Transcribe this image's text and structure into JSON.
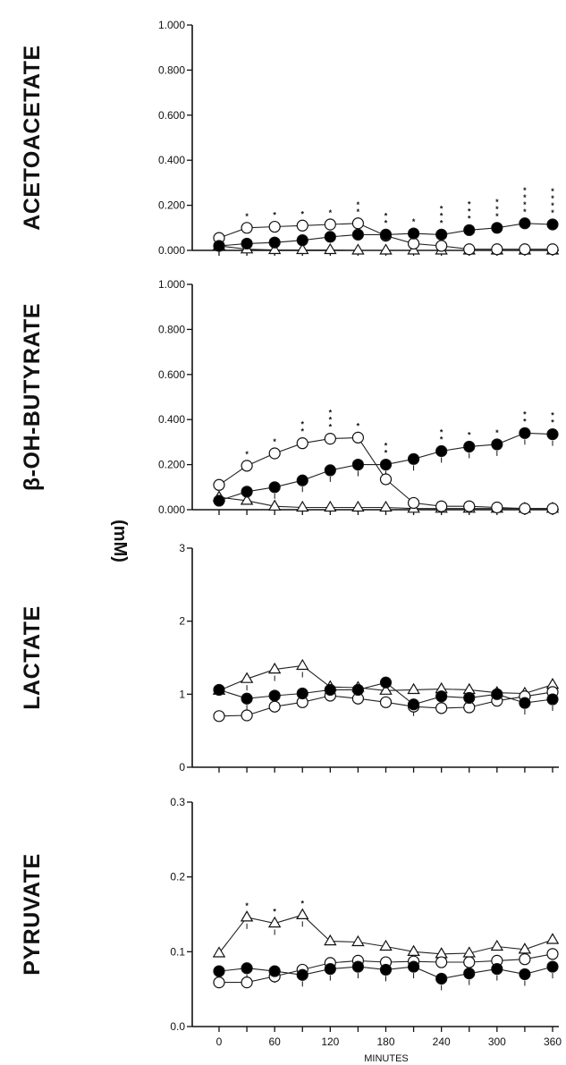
{
  "figure": {
    "unit_label": "(mM)",
    "x_axis_label": "MINUTES"
  },
  "chart_data": [
    {
      "type": "line",
      "title": "ACETOACETATE",
      "ylabel": "ACETOACETATE",
      "xlabel": "MINUTES",
      "ylim": [
        0,
        1.0
      ],
      "xlim": [
        0,
        360
      ],
      "y_ticks": [
        "0.000",
        "0.200",
        "0.400",
        "0.600",
        "0.800",
        "1.000"
      ],
      "x_ticks": [
        "0",
        "60",
        "120",
        "180",
        "240",
        "300",
        "360"
      ],
      "x": [
        0,
        30,
        60,
        90,
        120,
        150,
        180,
        210,
        240,
        270,
        300,
        330,
        360
      ],
      "series": [
        {
          "marker": "filled-circle",
          "values": [
            0.02,
            0.03,
            0.035,
            0.045,
            0.06,
            0.07,
            0.07,
            0.075,
            0.07,
            0.09,
            0.1,
            0.12,
            0.115
          ]
        },
        {
          "marker": "open-circle",
          "values": [
            0.055,
            0.1,
            0.105,
            0.11,
            0.115,
            0.12,
            0.065,
            0.03,
            0.02,
            0.005,
            0.005,
            0.005,
            0.005
          ]
        },
        {
          "marker": "open-triangle",
          "values": [
            0.02,
            0.005,
            0.002,
            0.002,
            0.002,
            0.0,
            0.0,
            0.0,
            0.0,
            0.0,
            0.0,
            0.0,
            0.0
          ]
        }
      ],
      "significance_marks": [
        "",
        "*",
        "*",
        "*",
        "*",
        "**",
        "**",
        "*",
        "***",
        "***",
        "***",
        "****",
        "****"
      ]
    },
    {
      "type": "line",
      "title": "β-OH-BUTYRATE",
      "ylabel": "β-OH-BUTYRATE",
      "xlabel": "MINUTES",
      "ylim": [
        0,
        1.0
      ],
      "xlim": [
        0,
        360
      ],
      "y_ticks": [
        "0.000",
        "0.200",
        "0.400",
        "0.600",
        "0.800",
        "1.000"
      ],
      "x_ticks": [
        "0",
        "60",
        "120",
        "180",
        "240",
        "300",
        "360"
      ],
      "x": [
        0,
        30,
        60,
        90,
        120,
        150,
        180,
        210,
        240,
        270,
        300,
        330,
        360
      ],
      "series": [
        {
          "marker": "filled-circle",
          "values": [
            0.04,
            0.08,
            0.1,
            0.13,
            0.175,
            0.2,
            0.2,
            0.225,
            0.26,
            0.28,
            0.29,
            0.34,
            0.335
          ]
        },
        {
          "marker": "open-circle",
          "values": [
            0.11,
            0.195,
            0.25,
            0.295,
            0.315,
            0.32,
            0.135,
            0.03,
            0.015,
            0.015,
            0.01,
            0.005,
            0.005
          ]
        },
        {
          "marker": "open-triangle",
          "values": [
            0.055,
            0.04,
            0.015,
            0.01,
            0.01,
            0.01,
            0.01,
            0.005,
            0.005,
            0.005,
            0.005,
            0.005,
            0.005
          ]
        }
      ],
      "significance_marks": [
        "",
        "*",
        "*",
        "**",
        "***",
        "*",
        "**",
        "",
        "**",
        "*",
        "*",
        "**",
        "**"
      ]
    },
    {
      "type": "line",
      "title": "LACTATE",
      "ylabel": "LACTATE",
      "xlabel": "MINUTES",
      "ylim": [
        0,
        3
      ],
      "xlim": [
        0,
        360
      ],
      "y_ticks": [
        "0",
        "1",
        "2",
        "3"
      ],
      "x_ticks": [
        "0",
        "60",
        "120",
        "180",
        "240",
        "300",
        "360"
      ],
      "x": [
        0,
        30,
        60,
        90,
        120,
        150,
        180,
        210,
        240,
        270,
        300,
        330,
        360
      ],
      "series": [
        {
          "marker": "filled-circle",
          "values": [
            1.06,
            0.94,
            0.98,
            1.01,
            1.06,
            1.06,
            1.16,
            0.86,
            0.97,
            0.95,
            1.0,
            0.88,
            0.93
          ]
        },
        {
          "marker": "open-circle",
          "values": [
            0.7,
            0.71,
            0.83,
            0.89,
            0.98,
            0.94,
            0.89,
            0.83,
            0.81,
            0.82,
            0.91,
            0.97,
            1.03
          ]
        },
        {
          "marker": "open-triangle",
          "values": [
            1.05,
            1.21,
            1.34,
            1.39,
            1.1,
            1.09,
            1.05,
            1.06,
            1.07,
            1.06,
            1.02,
            1.01,
            1.13
          ]
        }
      ],
      "significance_marks": []
    },
    {
      "type": "line",
      "title": "PYRUVATE",
      "ylabel": "PYRUVATE",
      "xlabel": "MINUTES",
      "ylim": [
        0,
        0.3
      ],
      "xlim": [
        0,
        360
      ],
      "y_ticks": [
        "0.0",
        "0.1",
        "0.2",
        "0.3"
      ],
      "x_ticks": [
        "0",
        "60",
        "120",
        "180",
        "240",
        "300",
        "360"
      ],
      "x": [
        0,
        30,
        60,
        90,
        120,
        150,
        180,
        210,
        240,
        270,
        300,
        330,
        360
      ],
      "series": [
        {
          "marker": "filled-circle",
          "values": [
            0.074,
            0.078,
            0.074,
            0.069,
            0.077,
            0.08,
            0.076,
            0.08,
            0.064,
            0.071,
            0.077,
            0.07,
            0.08
          ]
        },
        {
          "marker": "open-circle",
          "values": [
            0.059,
            0.059,
            0.067,
            0.076,
            0.085,
            0.088,
            0.086,
            0.087,
            0.086,
            0.086,
            0.088,
            0.09,
            0.097
          ]
        },
        {
          "marker": "open-triangle",
          "values": [
            0.098,
            0.146,
            0.138,
            0.149,
            0.114,
            0.113,
            0.107,
            0.1,
            0.097,
            0.098,
            0.107,
            0.103,
            0.116
          ]
        }
      ],
      "significance_marks": [
        "",
        "*",
        "*",
        "*",
        "",
        "",
        "",
        "",
        "",
        "",
        "",
        "",
        ""
      ]
    }
  ]
}
